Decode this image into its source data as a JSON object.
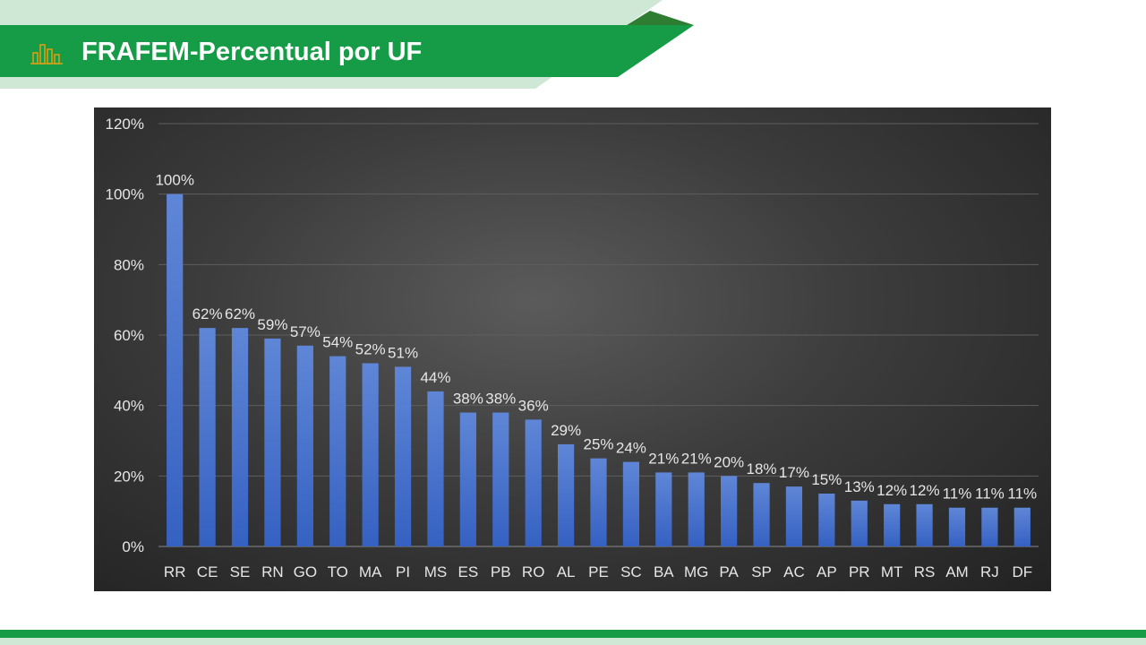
{
  "slide": {
    "title": "FRAFEM-Percentual por UF",
    "title_icon": "bar-chart-icon",
    "colors": {
      "primary_green": "#169c47",
      "dark_green": "#2e7d32",
      "light_green": "#cfe8d6",
      "bar_top": "#5f86d6",
      "bar_bottom": "#3561c2",
      "chart_background": "#3c3c3c",
      "icon_color": "#d4a017"
    }
  },
  "chart_data": {
    "type": "bar",
    "title": "",
    "xlabel": "",
    "ylabel": "",
    "categories": [
      "RR",
      "CE",
      "SE",
      "RN",
      "GO",
      "TO",
      "MA",
      "PI",
      "MS",
      "ES",
      "PB",
      "RO",
      "AL",
      "PE",
      "SC",
      "BA",
      "MG",
      "PA",
      "SP",
      "AC",
      "AP",
      "PR",
      "MT",
      "RS",
      "AM",
      "RJ",
      "DF"
    ],
    "values": [
      100,
      62,
      62,
      59,
      57,
      54,
      52,
      51,
      44,
      38,
      38,
      36,
      29,
      25,
      24,
      21,
      21,
      20,
      18,
      17,
      15,
      13,
      12,
      12,
      11,
      11,
      11
    ],
    "data_labels": [
      "100%",
      "62%",
      "62%",
      "59%",
      "57%",
      "54%",
      "52%",
      "51%",
      "44%",
      "38%",
      "38%",
      "36%",
      "29%",
      "25%",
      "24%",
      "21%",
      "21%",
      "20%",
      "18%",
      "17%",
      "15%",
      "13%",
      "12%",
      "12%",
      "11%",
      "11%",
      "11%"
    ],
    "y_ticks": [
      0,
      20,
      40,
      60,
      80,
      100,
      120
    ],
    "y_tick_labels": [
      "0%",
      "20%",
      "40%",
      "60%",
      "80%",
      "100%",
      "120%"
    ],
    "ylim": [
      0,
      120
    ],
    "grid": true,
    "legend": "none"
  }
}
